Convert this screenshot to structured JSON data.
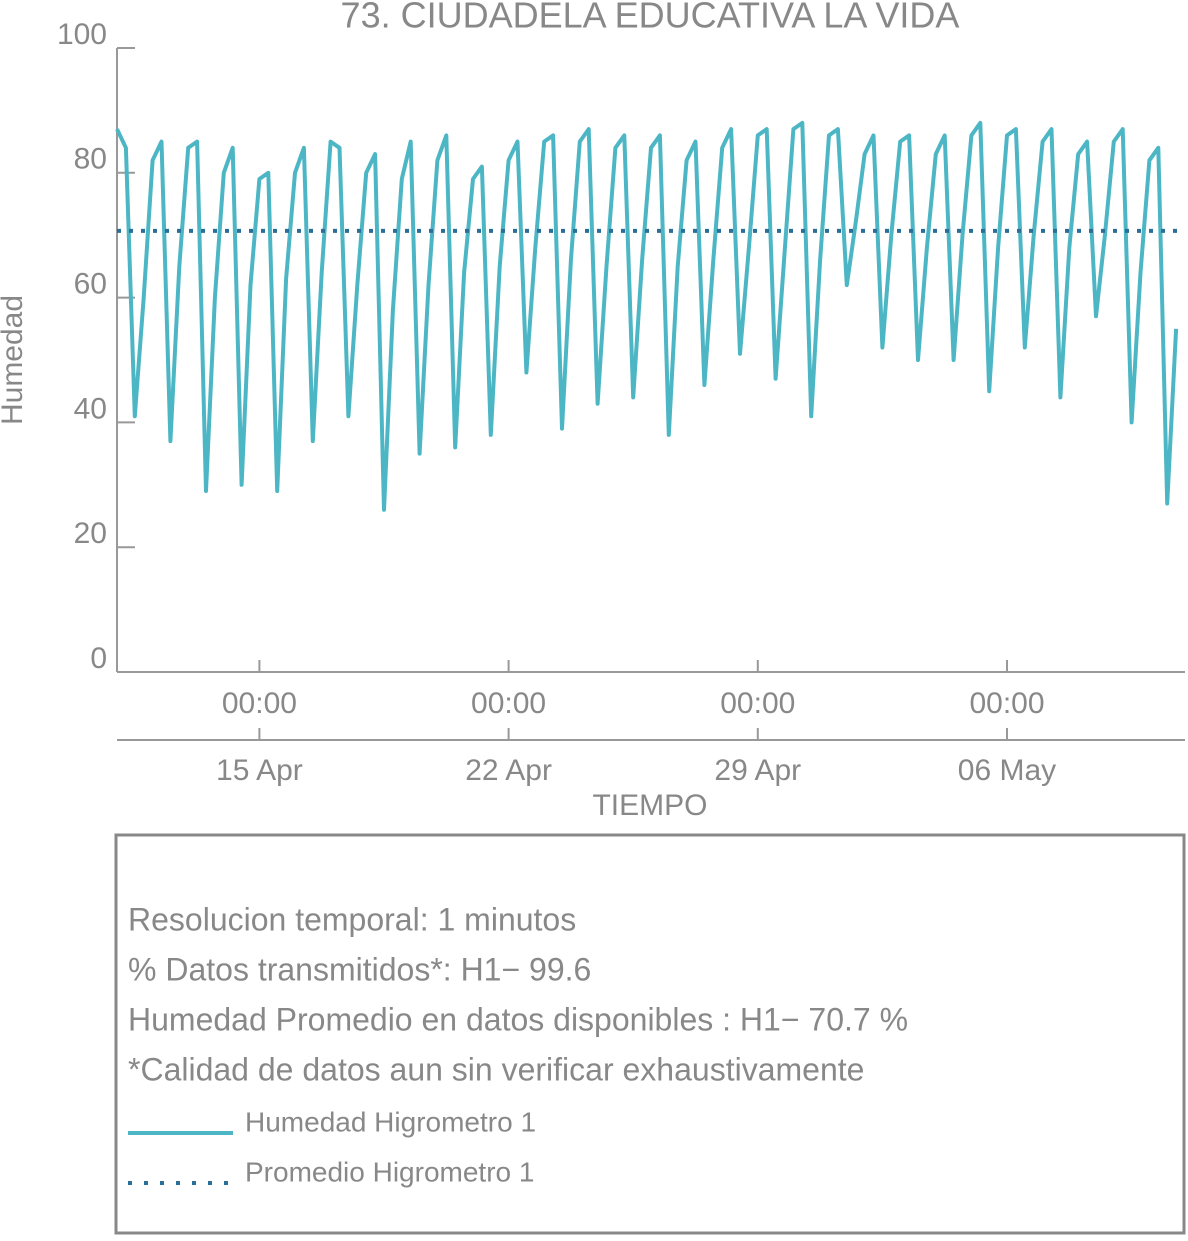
{
  "chart_data": {
    "type": "line",
    "title": "73. CIUDADELA EDUCATIVA LA VIDA",
    "ylabel": "Humedad",
    "xlabel": "TIEMPO",
    "ylim": [
      0,
      100
    ],
    "yticks": [
      0,
      20,
      40,
      60,
      80,
      100
    ],
    "xlim": [
      "04-11 00:00",
      "05-11 00:00"
    ],
    "xticks": [
      {
        "value": "04-15 00:00",
        "label": "00:00"
      },
      {
        "value": "04-22 00:00",
        "label": "00:00"
      },
      {
        "value": "04-29 00:00",
        "label": "00:00"
      },
      {
        "value": "05-06 00:00",
        "label": "00:00"
      }
    ],
    "xticks_date": [
      {
        "value": "04-15 00:00",
        "label": "15 Apr"
      },
      {
        "value": "04-22 00:00",
        "label": "22 Apr"
      },
      {
        "value": "04-29 00:00",
        "label": "29 Apr"
      },
      {
        "value": "05-06 00:00",
        "label": "06 May"
      }
    ],
    "x": [
      "04-11 00:00",
      "04-11 06:00",
      "04-11 12:00",
      "04-11 18:00",
      "04-12 00:00",
      "04-12 06:00",
      "04-12 12:00",
      "04-12 18:00",
      "04-13 00:00",
      "04-13 06:00",
      "04-13 12:00",
      "04-13 18:00",
      "04-14 00:00",
      "04-14 06:00",
      "04-14 12:00",
      "04-14 18:00",
      "04-15 00:00",
      "04-15 06:00",
      "04-15 12:00",
      "04-15 18:00",
      "04-16 00:00",
      "04-16 06:00",
      "04-16 12:00",
      "04-16 18:00",
      "04-17 00:00",
      "04-17 06:00",
      "04-17 12:00",
      "04-17 18:00",
      "04-18 00:00",
      "04-18 06:00",
      "04-18 12:00",
      "04-18 18:00",
      "04-19 00:00",
      "04-19 06:00",
      "04-19 12:00",
      "04-19 18:00",
      "04-20 00:00",
      "04-20 06:00",
      "04-20 12:00",
      "04-20 18:00",
      "04-21 00:00",
      "04-21 06:00",
      "04-21 12:00",
      "04-21 18:00",
      "04-22 00:00",
      "04-22 06:00",
      "04-22 12:00",
      "04-22 18:00",
      "04-23 00:00",
      "04-23 06:00",
      "04-23 12:00",
      "04-23 18:00",
      "04-24 00:00",
      "04-24 06:00",
      "04-24 12:00",
      "04-24 18:00",
      "04-25 00:00",
      "04-25 06:00",
      "04-25 12:00",
      "04-25 18:00",
      "04-26 00:00",
      "04-26 06:00",
      "04-26 12:00",
      "04-26 18:00",
      "04-27 00:00",
      "04-27 06:00",
      "04-27 12:00",
      "04-27 18:00",
      "04-28 00:00",
      "04-28 06:00",
      "04-28 12:00",
      "04-28 18:00",
      "04-29 00:00",
      "04-29 06:00",
      "04-29 12:00",
      "04-29 18:00",
      "04-30 00:00",
      "04-30 06:00",
      "04-30 12:00",
      "04-30 18:00",
      "05-01 00:00",
      "05-01 06:00",
      "05-01 12:00",
      "05-01 18:00",
      "05-02 00:00",
      "05-02 06:00",
      "05-02 12:00",
      "05-02 18:00",
      "05-03 00:00",
      "05-03 06:00",
      "05-03 12:00",
      "05-03 18:00",
      "05-04 00:00",
      "05-04 06:00",
      "05-04 12:00",
      "05-04 18:00",
      "05-05 00:00",
      "05-05 06:00",
      "05-05 12:00",
      "05-05 18:00",
      "05-06 00:00",
      "05-06 06:00",
      "05-06 12:00",
      "05-06 18:00",
      "05-07 00:00",
      "05-07 06:00",
      "05-07 12:00",
      "05-07 18:00",
      "05-08 00:00",
      "05-08 06:00",
      "05-08 12:00",
      "05-08 18:00",
      "05-09 00:00",
      "05-09 06:00",
      "05-09 12:00",
      "05-09 18:00",
      "05-10 00:00",
      "05-10 06:00",
      "05-10 12:00",
      "05-10 18:00"
    ],
    "series": [
      {
        "name": "Humedad Higrometro 1",
        "color": "#4db6c4",
        "values": [
          87,
          84,
          41,
          60,
          82,
          85,
          37,
          65,
          84,
          85,
          29,
          60,
          80,
          84,
          30,
          62,
          79,
          80,
          29,
          63,
          80,
          84,
          37,
          64,
          85,
          84,
          41,
          62,
          80,
          83,
          26,
          58,
          79,
          85,
          35,
          62,
          82,
          86,
          36,
          64,
          79,
          81,
          38,
          65,
          82,
          85,
          48,
          68,
          85,
          86,
          39,
          66,
          85,
          87,
          43,
          65,
          84,
          86,
          44,
          66,
          84,
          86,
          38,
          65,
          82,
          85,
          46,
          66,
          84,
          87,
          51,
          68,
          86,
          87,
          47,
          67,
          87,
          88,
          41,
          66,
          86,
          87,
          62,
          72,
          83,
          86,
          52,
          70,
          85,
          86,
          50,
          68,
          83,
          86,
          50,
          70,
          86,
          88,
          45,
          68,
          86,
          87,
          52,
          70,
          85,
          87,
          44,
          68,
          83,
          85,
          57,
          70,
          85,
          87,
          40,
          64,
          82,
          84,
          27,
          55
        ]
      }
    ],
    "reference_line": {
      "name": "Promedio Higrometro 1",
      "value": 70.7,
      "color": "#2a6f97",
      "style": "dotted"
    },
    "notes": [
      "Resolucion temporal: 1 minutos",
      "% Datos transmitidos*: H1− 99.6",
      "Humedad Promedio en datos disponibles : H1− 70.7 %",
      "*Calidad de datos aun sin verificar exhaustivamente"
    ]
  }
}
